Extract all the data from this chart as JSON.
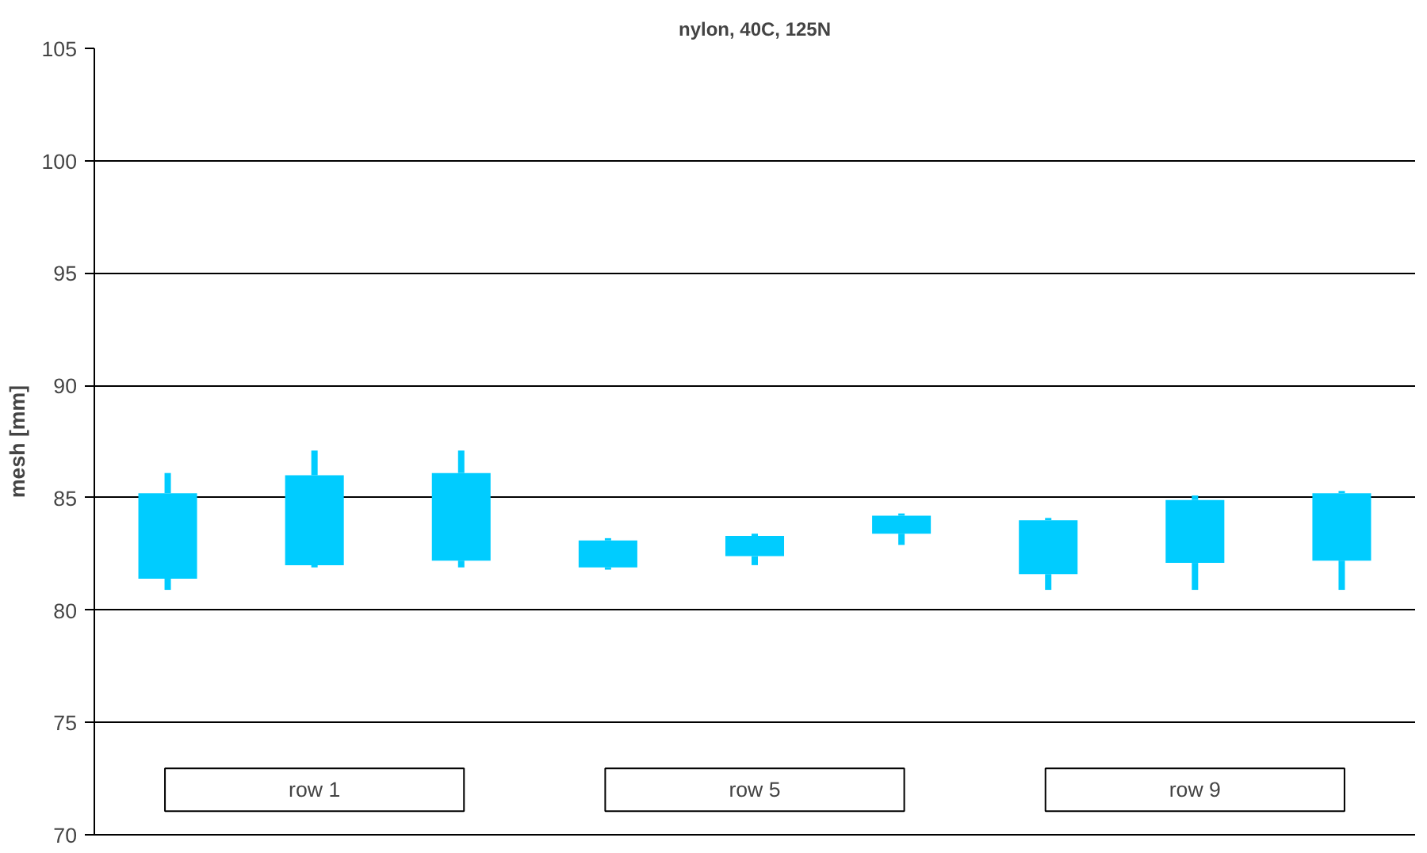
{
  "chart_data": {
    "type": "candlestick",
    "title": "nylon, 40C, 125N",
    "ylabel": "mesh [mm]",
    "categories": [
      null,
      null,
      null,
      null,
      null,
      null,
      null,
      null,
      null
    ],
    "ohlc": [
      [
        81.4,
        86.1,
        80.9,
        85.2
      ],
      [
        82.0,
        87.1,
        81.9,
        86.0
      ],
      [
        82.2,
        87.1,
        81.9,
        86.1
      ],
      [
        81.9,
        83.2,
        81.8,
        83.1
      ],
      [
        82.4,
        83.4,
        82.0,
        83.3
      ],
      [
        83.4,
        84.3,
        82.9,
        84.2
      ],
      [
        81.6,
        84.1,
        80.9,
        84.0
      ],
      [
        82.1,
        85.1,
        80.9,
        84.9
      ],
      [
        82.2,
        85.3,
        80.9,
        85.2
      ]
    ],
    "color": "#00ccff",
    "ylim": [
      70,
      105
    ],
    "yticks": [
      70,
      75,
      80,
      85,
      90,
      95,
      100,
      105
    ],
    "grid": "y",
    "tick_labels": "y",
    "annotations": [
      "row 1",
      "row 5",
      "row 9"
    ]
  }
}
